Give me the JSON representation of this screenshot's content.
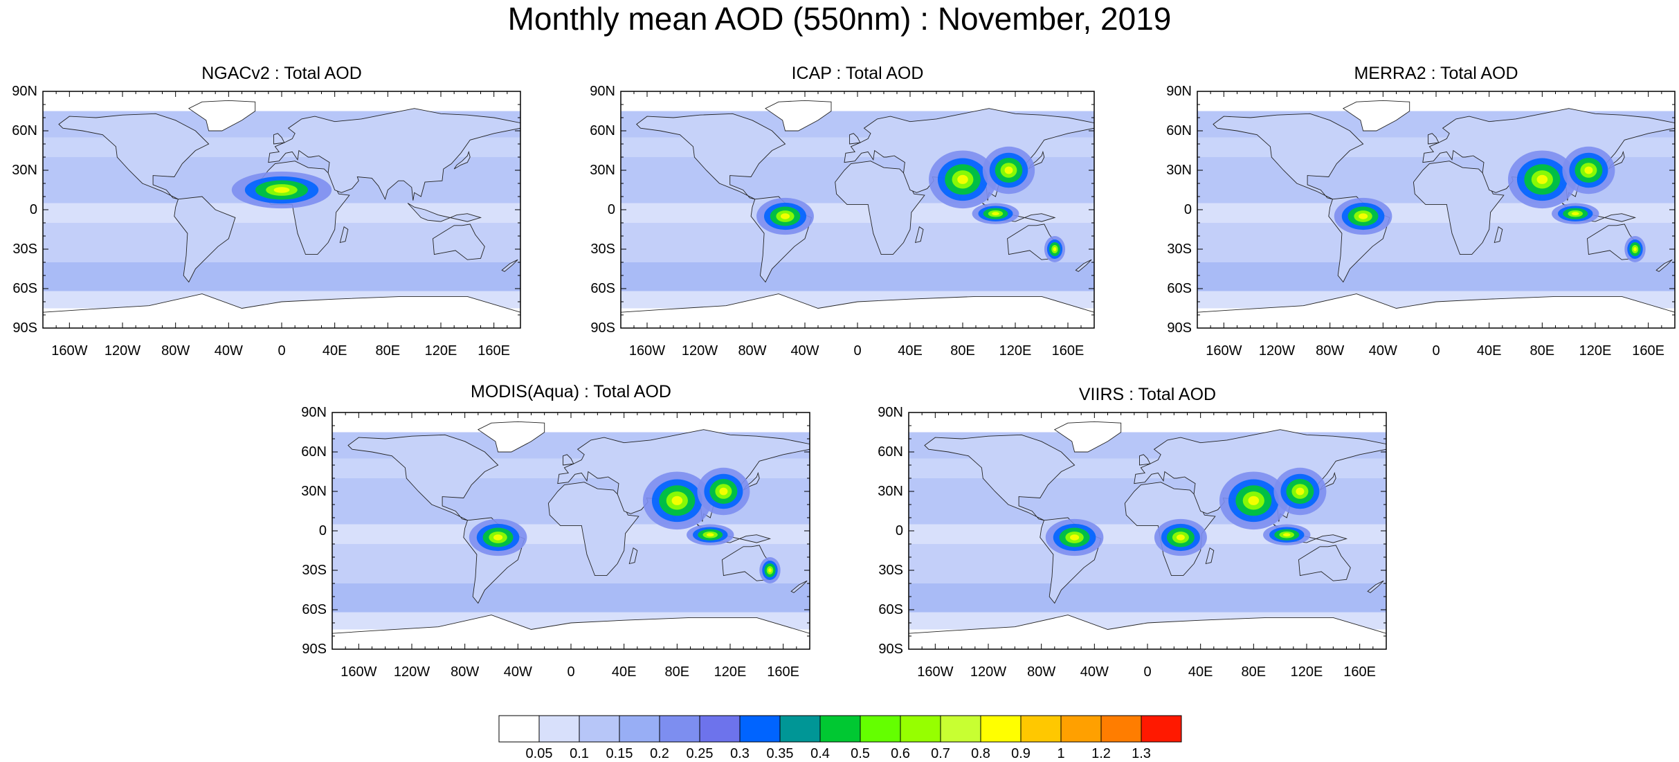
{
  "title": "Monthly mean AOD (550nm) : November, 2019",
  "lat_ticks": [
    "90N",
    "60N",
    "30N",
    "0",
    "30S",
    "60S",
    "90S"
  ],
  "lon_ticks": [
    "160W",
    "120W",
    "80W",
    "40W",
    "0",
    "40E",
    "80E",
    "120E",
    "160E"
  ],
  "panels": [
    {
      "title": "NGACv2 : Total AOD",
      "hotspots": [
        "w-africa"
      ]
    },
    {
      "title": "ICAP : Total AOD",
      "hotspots": [
        "s-america",
        "india",
        "china",
        "indonesia",
        "e-australia"
      ]
    },
    {
      "title": "MERRA2 : Total AOD",
      "hotspots": [
        "s-america",
        "india",
        "china",
        "indonesia",
        "e-australia"
      ]
    },
    {
      "title": "MODIS(Aqua) : Total AOD",
      "hotspots": [
        "s-america",
        "india",
        "china",
        "indonesia",
        "e-australia"
      ]
    },
    {
      "title": "VIIRS : Total AOD",
      "hotspots": [
        "s-america",
        "india",
        "china",
        "indonesia",
        "central-africa"
      ]
    }
  ],
  "colorbar": {
    "labels": [
      "0.05",
      "0.1",
      "0.15",
      "0.2",
      "0.25",
      "0.3",
      "0.35",
      "0.4",
      "0.5",
      "0.6",
      "0.7",
      "0.8",
      "0.9",
      "1",
      "1.2",
      "1.3"
    ],
    "colors": [
      "#ffffff",
      "#d8e0fb",
      "#b7c6f8",
      "#98aef5",
      "#7d8ef0",
      "#6d73ec",
      "#0064ff",
      "#009696",
      "#00c832",
      "#64ff00",
      "#96ff00",
      "#c8ff32",
      "#ffff00",
      "#ffc800",
      "#ffa000",
      "#ff7d00",
      "#ff1900"
    ]
  }
}
